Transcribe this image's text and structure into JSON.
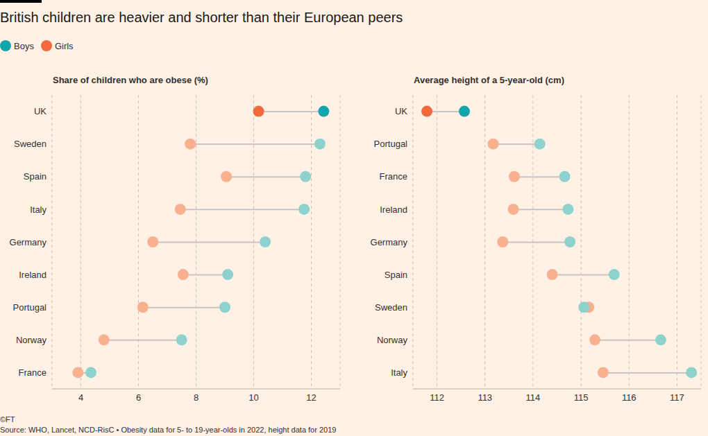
{
  "title": "British children are heavier and shorter than their European peers",
  "copyright": "©FT",
  "source": "Source: WHO, Lancet, NCD-RisC • Obesity data for 5- to 19-year-olds in 2022, height data for 2019",
  "chart_data": [
    {
      "type": "dumbbell",
      "title": "Share of children who are obese (%)",
      "orientation": "horizontal",
      "grid": true,
      "legend": "top-left",
      "categories": [
        "UK",
        "Sweden",
        "Spain",
        "Italy",
        "Germany",
        "Ireland",
        "Portugal",
        "Norway",
        "France"
      ],
      "xlim": [
        3,
        13
      ],
      "xticks": [
        4,
        6,
        8,
        10,
        12
      ],
      "series": [
        {
          "name": "Boys",
          "color": "#13a5ae",
          "colors": [
            "#13a5ae",
            "#8ed2cd",
            "#8ed2cd",
            "#8ed2cd",
            "#8ed2cd",
            "#8ed2cd",
            "#8ed2cd",
            "#8ed2cd",
            "#8ed2cd"
          ],
          "values": [
            12.43,
            12.3,
            11.8,
            11.75,
            10.4,
            9.1,
            9.0,
            7.5,
            4.35
          ]
        },
        {
          "name": "Girls",
          "color": "#f26a3b",
          "colors": [
            "#f26a3b",
            "#f9b08e",
            "#f9b08e",
            "#f9b08e",
            "#f9b08e",
            "#f9b08e",
            "#f9b08e",
            "#f9b08e",
            "#f9b08e"
          ],
          "values": [
            10.17,
            7.8,
            9.05,
            7.45,
            6.5,
            7.55,
            6.15,
            4.8,
            3.9
          ]
        }
      ]
    },
    {
      "type": "dumbbell",
      "title": "Average height of a 5-year-old (cm)",
      "orientation": "horizontal",
      "grid": true,
      "categories": [
        "UK",
        "Portugal",
        "France",
        "Ireland",
        "Germany",
        "Spain",
        "Sweden",
        "Norway",
        "Italy"
      ],
      "xlim": [
        111.5,
        117.5
      ],
      "xticks": [
        112,
        113,
        114,
        115,
        116,
        117
      ],
      "series": [
        {
          "name": "Boys",
          "color": "#13a5ae",
          "colors": [
            "#13a5ae",
            "#8ed2cd",
            "#8ed2cd",
            "#8ed2cd",
            "#8ed2cd",
            "#8ed2cd",
            "#8ed2cd",
            "#8ed2cd",
            "#8ed2cd"
          ],
          "values": [
            112.57,
            114.14,
            114.66,
            114.73,
            114.77,
            115.69,
            115.06,
            116.66,
            117.3
          ]
        },
        {
          "name": "Girls",
          "color": "#f26a3b",
          "colors": [
            "#f26a3b",
            "#f9b08e",
            "#f9b08e",
            "#f9b08e",
            "#f9b08e",
            "#f9b08e",
            "#f9b08e",
            "#f9b08e",
            "#f9b08e"
          ],
          "values": [
            111.79,
            113.17,
            113.61,
            113.59,
            113.37,
            114.4,
            115.16,
            115.29,
            115.46
          ]
        }
      ]
    }
  ]
}
